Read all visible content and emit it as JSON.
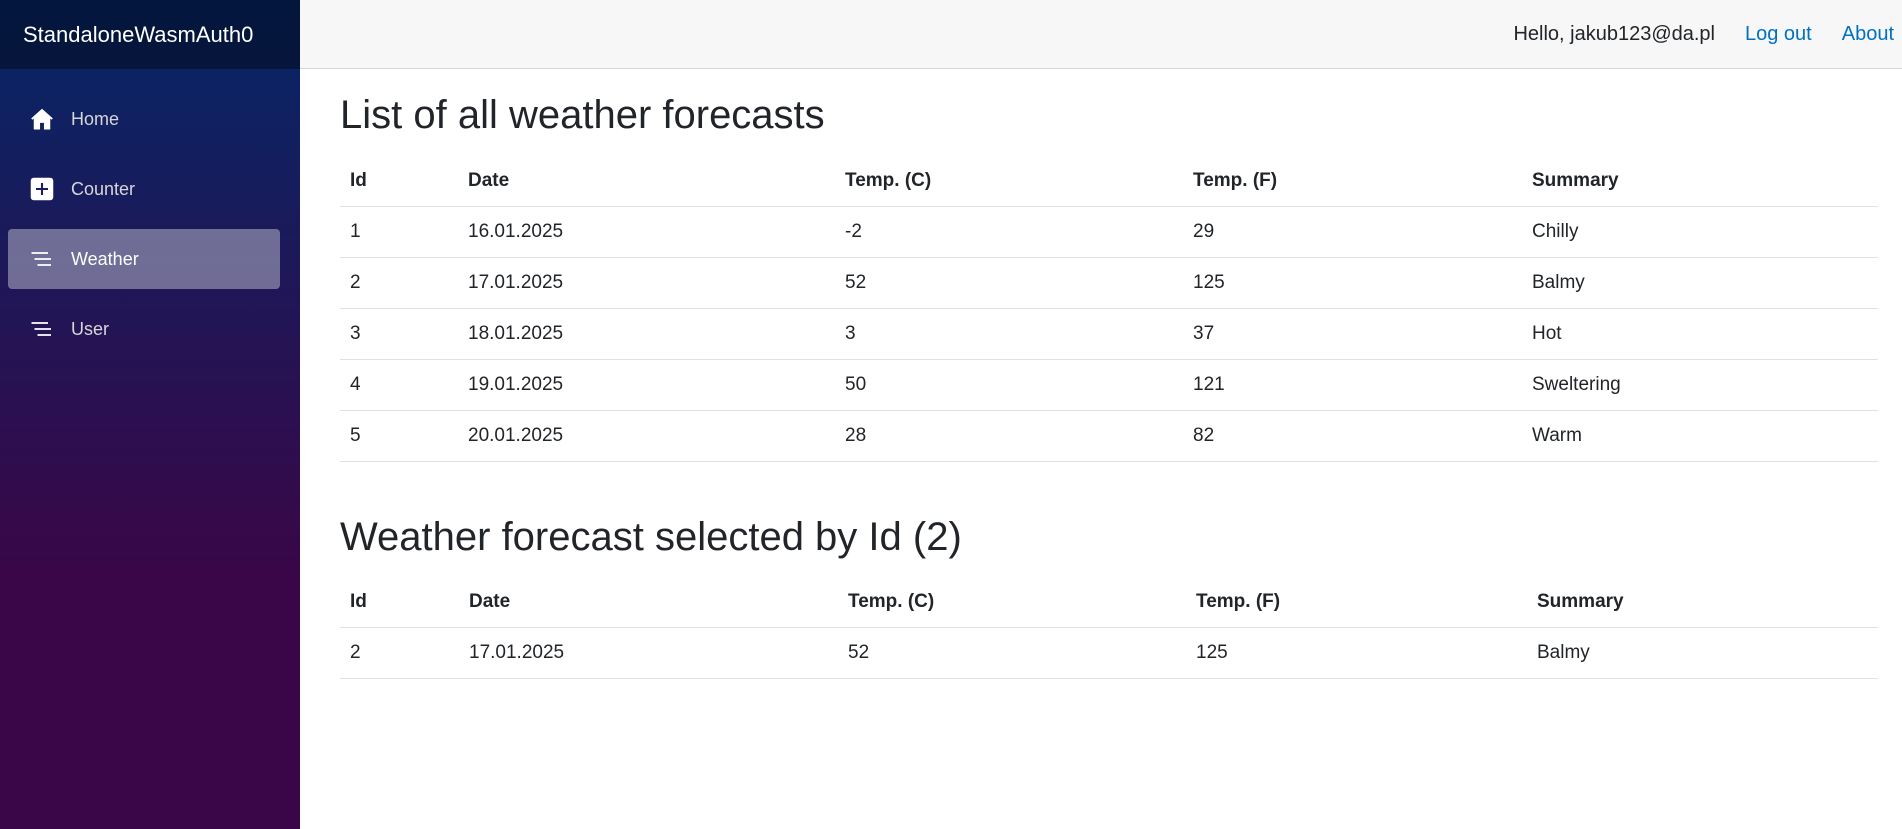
{
  "brand": "StandaloneWasmAuth0",
  "nav": {
    "items": [
      {
        "label": "Home",
        "icon": "home-icon"
      },
      {
        "label": "Counter",
        "icon": "plus-square-icon"
      },
      {
        "label": "Weather",
        "icon": "list-icon",
        "active": true
      },
      {
        "label": "User",
        "icon": "list-icon"
      }
    ]
  },
  "header": {
    "greeting": "Hello, jakub123@da.pl",
    "logout": "Log out",
    "about": "About"
  },
  "all_forecasts": {
    "title": "List of all weather forecasts",
    "columns": [
      "Id",
      "Date",
      "Temp. (C)",
      "Temp. (F)",
      "Summary"
    ],
    "rows": [
      [
        "1",
        "16.01.2025",
        "-2",
        "29",
        "Chilly"
      ],
      [
        "2",
        "17.01.2025",
        "52",
        "125",
        "Balmy"
      ],
      [
        "3",
        "18.01.2025",
        "3",
        "37",
        "Hot"
      ],
      [
        "4",
        "19.01.2025",
        "50",
        "121",
        "Sweltering"
      ],
      [
        "5",
        "20.01.2025",
        "28",
        "82",
        "Warm"
      ]
    ]
  },
  "selected_forecast": {
    "title": "Weather forecast selected by Id (2)",
    "columns": [
      "Id",
      "Date",
      "Temp. (C)",
      "Temp. (F)",
      "Summary"
    ],
    "rows": [
      [
        "2",
        "17.01.2025",
        "52",
        "125",
        "Balmy"
      ]
    ]
  },
  "colors": {
    "sidebar_top": "#052767",
    "sidebar_bottom": "#3a0647",
    "link": "#0071c1",
    "top_row_bg": "#f7f7f7"
  }
}
